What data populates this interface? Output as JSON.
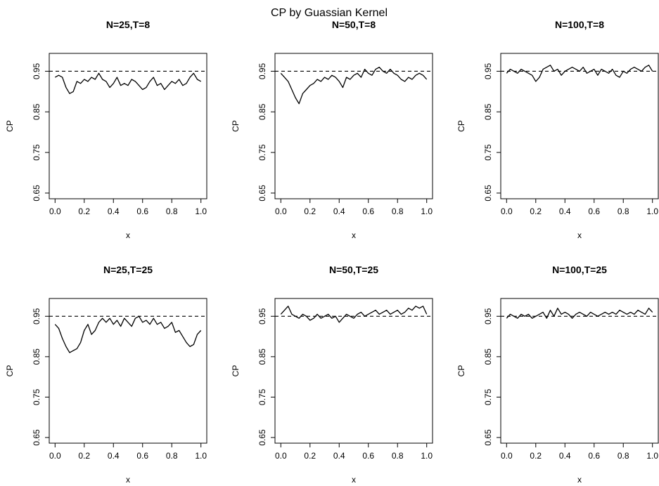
{
  "title": "CP by Guassian Kernel",
  "axes_common": {
    "xlabel": "x",
    "ylabel": "CP",
    "xlim": [
      0,
      1
    ],
    "ylim": [
      0.65,
      0.99
    ],
    "xticks": [
      "0.0",
      "0.2",
      "0.4",
      "0.6",
      "0.8",
      "1.0"
    ],
    "yticks": [
      "0.65",
      "0.75",
      "0.85",
      "0.95"
    ],
    "reference_line": {
      "y": 0.95,
      "style": "dashed"
    },
    "grid": false
  },
  "chart_data": [
    {
      "type": "line",
      "title": "N=25,T=8",
      "x": [
        0.0,
        0.025,
        0.05,
        0.075,
        0.1,
        0.125,
        0.15,
        0.175,
        0.2,
        0.225,
        0.25,
        0.275,
        0.3,
        0.325,
        0.35,
        0.375,
        0.4,
        0.425,
        0.45,
        0.475,
        0.5,
        0.525,
        0.55,
        0.575,
        0.6,
        0.625,
        0.65,
        0.675,
        0.7,
        0.725,
        0.75,
        0.775,
        0.8,
        0.825,
        0.85,
        0.875,
        0.9,
        0.925,
        0.95,
        0.975,
        1.0
      ],
      "series": [
        {
          "values": [
            0.935,
            0.94,
            0.935,
            0.91,
            0.895,
            0.9,
            0.925,
            0.92,
            0.93,
            0.925,
            0.935,
            0.93,
            0.945,
            0.93,
            0.925,
            0.91,
            0.92,
            0.935,
            0.915,
            0.92,
            0.915,
            0.93,
            0.925,
            0.915,
            0.905,
            0.91,
            0.925,
            0.935,
            0.915,
            0.92,
            0.905,
            0.915,
            0.925,
            0.92,
            0.93,
            0.915,
            0.92,
            0.935,
            0.945,
            0.93,
            0.925
          ]
        }
      ]
    },
    {
      "type": "line",
      "title": "N=50,T=8",
      "x": [
        0.0,
        0.025,
        0.05,
        0.075,
        0.1,
        0.125,
        0.15,
        0.175,
        0.2,
        0.225,
        0.25,
        0.275,
        0.3,
        0.325,
        0.35,
        0.375,
        0.4,
        0.425,
        0.45,
        0.475,
        0.5,
        0.525,
        0.55,
        0.575,
        0.6,
        0.625,
        0.65,
        0.675,
        0.7,
        0.725,
        0.75,
        0.775,
        0.8,
        0.825,
        0.85,
        0.875,
        0.9,
        0.925,
        0.95,
        0.975,
        1.0
      ],
      "series": [
        {
          "values": [
            0.945,
            0.935,
            0.925,
            0.905,
            0.885,
            0.87,
            0.895,
            0.905,
            0.915,
            0.92,
            0.93,
            0.925,
            0.935,
            0.93,
            0.94,
            0.935,
            0.925,
            0.91,
            0.935,
            0.93,
            0.94,
            0.945,
            0.935,
            0.955,
            0.945,
            0.94,
            0.955,
            0.96,
            0.95,
            0.945,
            0.955,
            0.945,
            0.94,
            0.93,
            0.925,
            0.935,
            0.93,
            0.94,
            0.945,
            0.94,
            0.93
          ]
        }
      ]
    },
    {
      "type": "line",
      "title": "N=100,T=8",
      "x": [
        0.0,
        0.025,
        0.05,
        0.075,
        0.1,
        0.125,
        0.15,
        0.175,
        0.2,
        0.225,
        0.25,
        0.275,
        0.3,
        0.325,
        0.35,
        0.375,
        0.4,
        0.425,
        0.45,
        0.475,
        0.5,
        0.525,
        0.55,
        0.575,
        0.6,
        0.625,
        0.65,
        0.675,
        0.7,
        0.725,
        0.75,
        0.775,
        0.8,
        0.825,
        0.85,
        0.875,
        0.9,
        0.925,
        0.95,
        0.975,
        1.0
      ],
      "series": [
        {
          "values": [
            0.945,
            0.955,
            0.95,
            0.945,
            0.955,
            0.95,
            0.945,
            0.94,
            0.925,
            0.935,
            0.955,
            0.96,
            0.965,
            0.95,
            0.955,
            0.94,
            0.95,
            0.955,
            0.96,
            0.955,
            0.95,
            0.96,
            0.945,
            0.95,
            0.955,
            0.94,
            0.955,
            0.95,
            0.945,
            0.955,
            0.94,
            0.935,
            0.95,
            0.945,
            0.955,
            0.96,
            0.955,
            0.95,
            0.96,
            0.965,
            0.95
          ]
        }
      ]
    },
    {
      "type": "line",
      "title": "N=25,T=25",
      "x": [
        0.0,
        0.025,
        0.05,
        0.075,
        0.1,
        0.125,
        0.15,
        0.175,
        0.2,
        0.225,
        0.25,
        0.275,
        0.3,
        0.325,
        0.35,
        0.375,
        0.4,
        0.425,
        0.45,
        0.475,
        0.5,
        0.525,
        0.55,
        0.575,
        0.6,
        0.625,
        0.65,
        0.675,
        0.7,
        0.725,
        0.75,
        0.775,
        0.8,
        0.825,
        0.85,
        0.875,
        0.9,
        0.925,
        0.95,
        0.975,
        1.0
      ],
      "series": [
        {
          "values": [
            0.93,
            0.92,
            0.895,
            0.875,
            0.86,
            0.865,
            0.87,
            0.885,
            0.915,
            0.93,
            0.905,
            0.915,
            0.935,
            0.945,
            0.935,
            0.945,
            0.93,
            0.94,
            0.925,
            0.945,
            0.935,
            0.925,
            0.945,
            0.95,
            0.935,
            0.94,
            0.93,
            0.945,
            0.93,
            0.935,
            0.92,
            0.925,
            0.935,
            0.91,
            0.915,
            0.9,
            0.885,
            0.875,
            0.88,
            0.905,
            0.915
          ]
        }
      ]
    },
    {
      "type": "line",
      "title": "N=50,T=25",
      "x": [
        0.0,
        0.025,
        0.05,
        0.075,
        0.1,
        0.125,
        0.15,
        0.175,
        0.2,
        0.225,
        0.25,
        0.275,
        0.3,
        0.325,
        0.35,
        0.375,
        0.4,
        0.425,
        0.45,
        0.475,
        0.5,
        0.525,
        0.55,
        0.575,
        0.6,
        0.625,
        0.65,
        0.675,
        0.7,
        0.725,
        0.75,
        0.775,
        0.8,
        0.825,
        0.85,
        0.875,
        0.9,
        0.925,
        0.95,
        0.975,
        1.0
      ],
      "series": [
        {
          "values": [
            0.955,
            0.965,
            0.975,
            0.955,
            0.95,
            0.945,
            0.955,
            0.95,
            0.94,
            0.945,
            0.955,
            0.945,
            0.95,
            0.955,
            0.945,
            0.95,
            0.935,
            0.945,
            0.955,
            0.95,
            0.945,
            0.955,
            0.96,
            0.95,
            0.955,
            0.96,
            0.965,
            0.955,
            0.96,
            0.965,
            0.955,
            0.96,
            0.965,
            0.955,
            0.96,
            0.97,
            0.965,
            0.975,
            0.97,
            0.975,
            0.955
          ]
        }
      ]
    },
    {
      "type": "line",
      "title": "N=100,T=25",
      "x": [
        0.0,
        0.025,
        0.05,
        0.075,
        0.1,
        0.125,
        0.15,
        0.175,
        0.2,
        0.225,
        0.25,
        0.275,
        0.3,
        0.325,
        0.35,
        0.375,
        0.4,
        0.425,
        0.45,
        0.475,
        0.5,
        0.525,
        0.55,
        0.575,
        0.6,
        0.625,
        0.65,
        0.675,
        0.7,
        0.725,
        0.75,
        0.775,
        0.8,
        0.825,
        0.85,
        0.875,
        0.9,
        0.925,
        0.95,
        0.975,
        1.0
      ],
      "series": [
        {
          "values": [
            0.945,
            0.955,
            0.95,
            0.945,
            0.955,
            0.95,
            0.955,
            0.945,
            0.95,
            0.955,
            0.96,
            0.945,
            0.965,
            0.95,
            0.97,
            0.955,
            0.96,
            0.955,
            0.945,
            0.955,
            0.96,
            0.955,
            0.95,
            0.96,
            0.955,
            0.95,
            0.955,
            0.96,
            0.955,
            0.96,
            0.955,
            0.965,
            0.96,
            0.955,
            0.96,
            0.955,
            0.965,
            0.96,
            0.955,
            0.97,
            0.96
          ]
        }
      ]
    }
  ]
}
